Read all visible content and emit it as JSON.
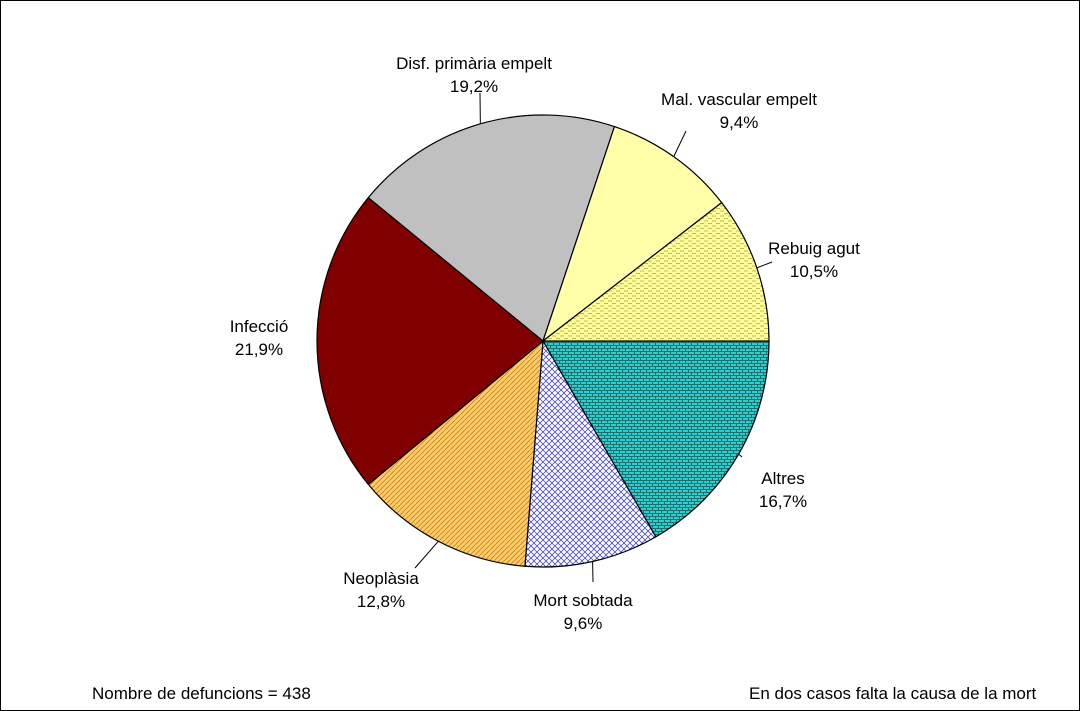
{
  "chart_data": {
    "type": "pie",
    "title": "",
    "start_angle_deg": 0,
    "direction": "clockwise",
    "slices": [
      {
        "label": "Altres",
        "value": 16.7,
        "value_label": "16,7%",
        "color": "#33cccc",
        "pattern": "brick"
      },
      {
        "label": "Mort sobtada",
        "value": 9.6,
        "value_label": "9,6%",
        "color": "#ffffff",
        "pattern": "diamond-blue"
      },
      {
        "label": "Neoplàsia",
        "value": 12.8,
        "value_label": "12,8%",
        "color": "#ffcc66",
        "pattern": "diagonal"
      },
      {
        "label": "Infecció",
        "value": 21.9,
        "value_label": "21,9%",
        "color": "#800000",
        "pattern": "solid"
      },
      {
        "label": "Disf. primària empelt",
        "value": 19.2,
        "value_label": "19,2%",
        "color": "#c0c0c0",
        "pattern": "solid"
      },
      {
        "label": "Mal. vascular empelt",
        "value": 9.4,
        "value_label": "9,4%",
        "color": "#ffffaa",
        "pattern": "solid"
      },
      {
        "label": "Rebuig agut",
        "value": 10.5,
        "value_label": "10,5%",
        "color": "#ffff99",
        "pattern": "dashes"
      }
    ]
  },
  "footer": {
    "left": "Nombre de defuncions = 438",
    "right": "En dos casos falta la causa de la mort"
  }
}
